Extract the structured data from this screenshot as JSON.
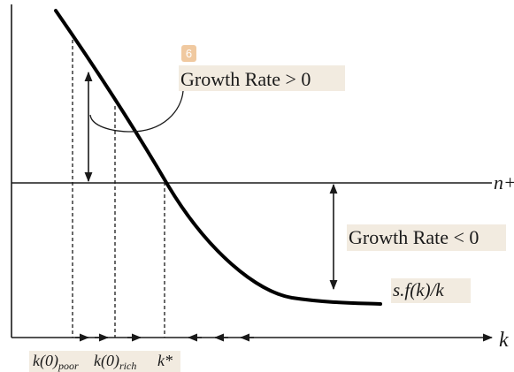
{
  "diagram": {
    "badge_number": "6",
    "growth_positive_label": "Growth Rate > 0",
    "growth_negative_label": "Growth Rate < 0",
    "horizontal_line_label": "n+δ",
    "curve_label": "s.f(k)/k",
    "x_axis_label": "k",
    "ticks": {
      "poor": {
        "main": "k(0)",
        "sub": "poor"
      },
      "rich": {
        "main": "k(0)",
        "sub": "rich"
      },
      "steady": "k*"
    },
    "colors": {
      "badge": "#f0c9a0",
      "label_bg": "#f2ebe0",
      "ink": "#1a1a1a"
    }
  }
}
